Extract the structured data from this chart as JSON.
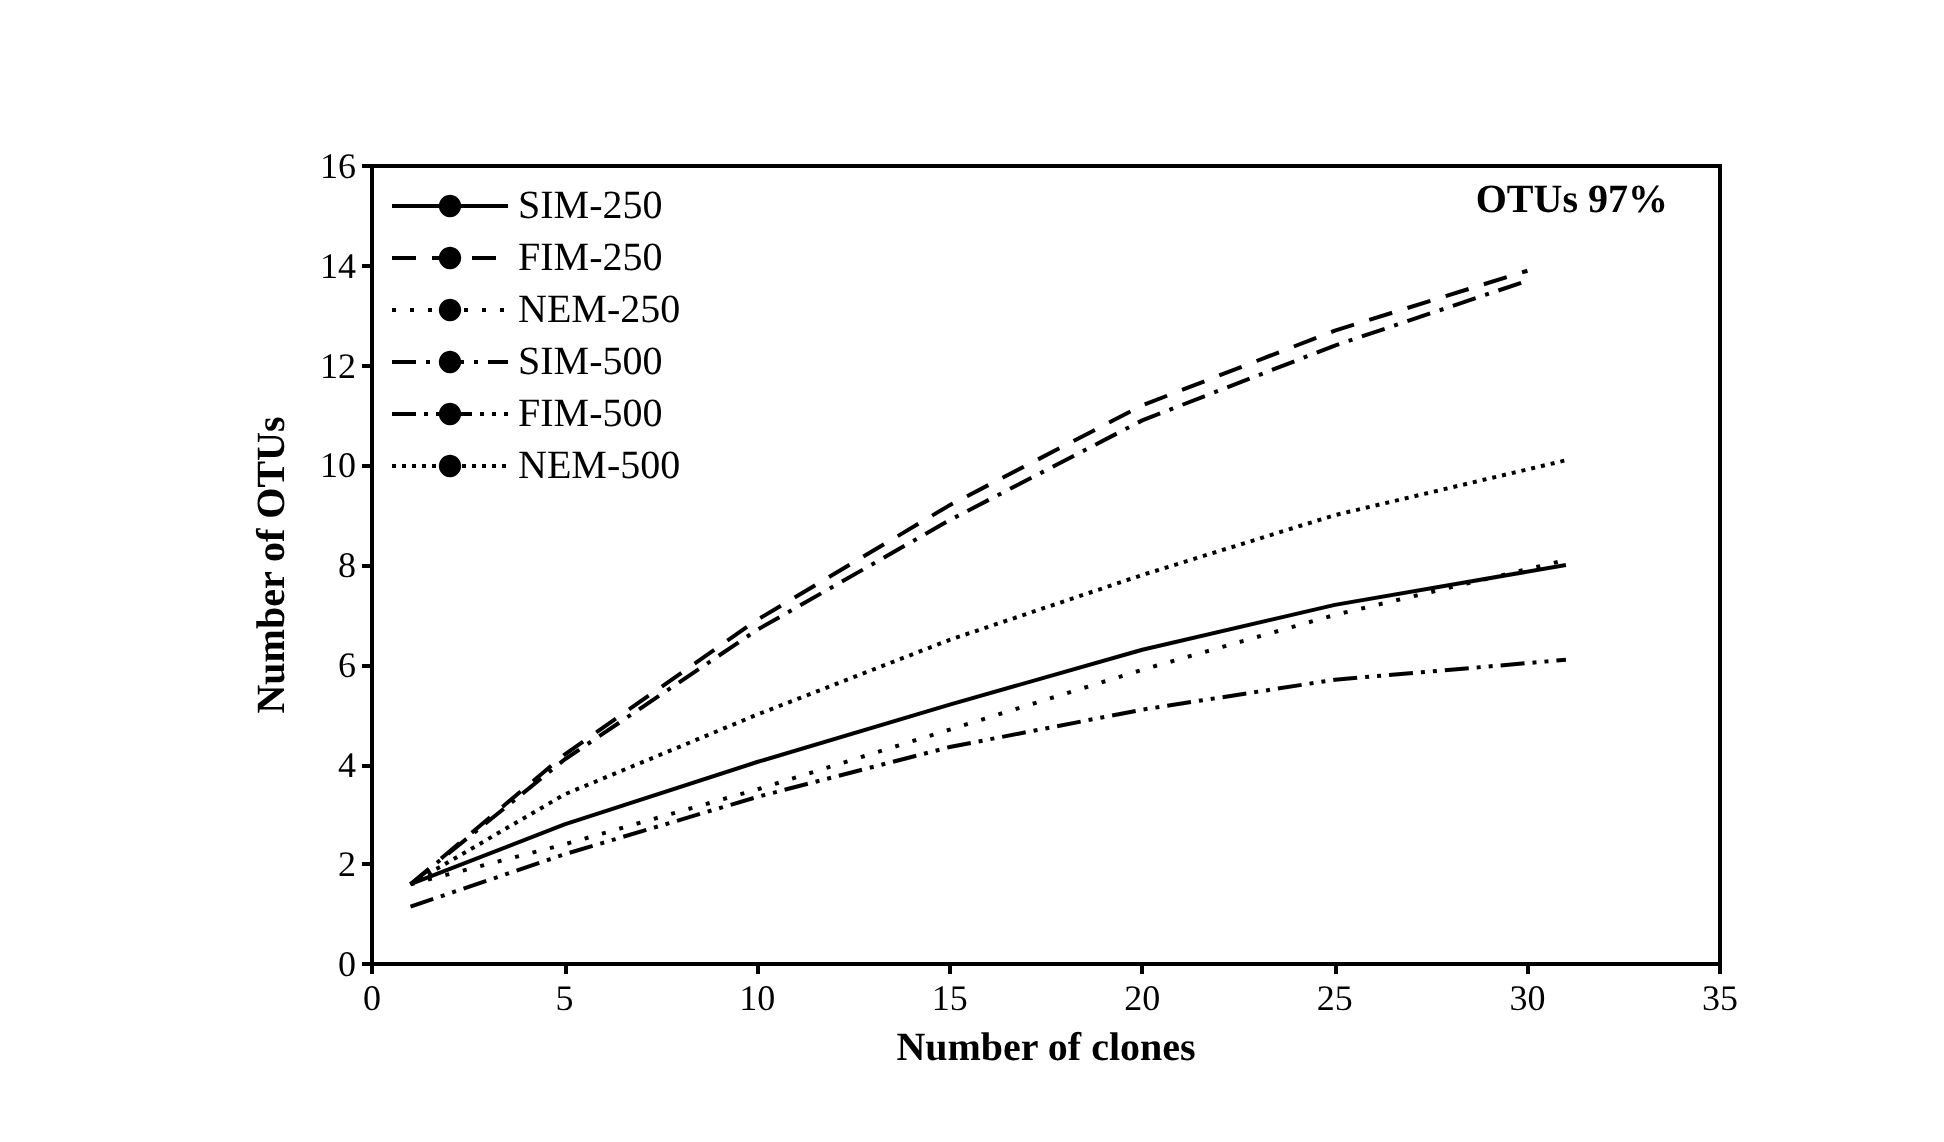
{
  "chart_data": {
    "type": "line",
    "xlabel": "Number of clones",
    "ylabel": "Number of OTUs",
    "annotations": [
      "OTUs 97%"
    ],
    "xlim": [
      0,
      35
    ],
    "xticks": [
      0,
      5,
      10,
      15,
      20,
      25,
      30,
      35
    ],
    "ylim": [
      0,
      16
    ],
    "yticks": [
      0,
      2,
      4,
      6,
      8,
      10,
      12,
      14,
      16
    ],
    "grid": false,
    "legend": "top left",
    "marker": "none",
    "series": [
      {
        "name": "SIM-250",
        "color": "#000000",
        "line_style": "solid",
        "x": [
          1,
          5,
          10,
          15,
          20,
          25,
          31
        ],
        "values": [
          1.6,
          2.8,
          4.05,
          5.2,
          6.3,
          7.2,
          8.0
        ]
      },
      {
        "name": "FIM-250",
        "color": "#000000",
        "line_style": "dashed",
        "x": [
          1,
          5,
          10,
          15,
          20,
          25,
          30
        ],
        "values": [
          1.6,
          4.2,
          6.9,
          9.2,
          11.2,
          12.7,
          13.9
        ]
      },
      {
        "name": "NEM-250",
        "color": "#000000",
        "line_style": "dotted",
        "x": [
          1,
          5,
          10,
          15,
          20,
          25,
          31
        ],
        "values": [
          1.6,
          2.4,
          3.5,
          4.7,
          5.9,
          7.0,
          8.1
        ]
      },
      {
        "name": "SIM-500",
        "color": "#000000",
        "line_style": "dashdot",
        "x": [
          1,
          5,
          10,
          15,
          20,
          25,
          30
        ],
        "values": [
          1.6,
          4.1,
          6.7,
          8.9,
          10.9,
          12.4,
          13.7
        ]
      },
      {
        "name": "FIM-500",
        "color": "#000000",
        "line_style": "dashdotdot",
        "x": [
          1,
          5,
          10,
          15,
          20,
          25,
          31
        ],
        "values": [
          1.15,
          2.2,
          3.35,
          4.35,
          5.1,
          5.7,
          6.1
        ]
      },
      {
        "name": "NEM-500",
        "color": "#000000",
        "line_style": "densedot",
        "x": [
          1,
          5,
          10,
          15,
          20,
          25,
          31
        ],
        "values": [
          1.6,
          3.4,
          5.0,
          6.5,
          7.8,
          9.0,
          10.1
        ]
      }
    ]
  }
}
